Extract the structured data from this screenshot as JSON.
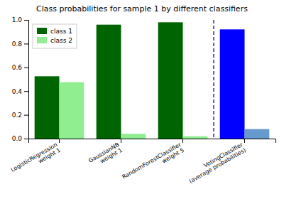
{
  "chart_data": {
    "type": "bar",
    "title": "Class probabilities for sample 1 by different classifiers",
    "categories": [
      "LogisticRegression\nweight 1",
      "GaussianNB\nweight 1",
      "RandomForestClassifier\nweight 5",
      "VotingClassifier\n(average probabilities)"
    ],
    "series": [
      {
        "name": "class 1",
        "color": "#006400",
        "colors": [
          "#006400",
          "#006400",
          "#006400",
          "#0000FF"
        ],
        "values": [
          0.525,
          0.96,
          0.98,
          0.92
        ]
      },
      {
        "name": "class 2",
        "color": "#90EE90",
        "colors": [
          "#90EE90",
          "#90EE90",
          "#90EE90",
          "#6699CC"
        ],
        "values": [
          0.475,
          0.04,
          0.02,
          0.08
        ]
      }
    ],
    "ylim": [
      0.0,
      1.0
    ],
    "yticks": [
      {
        "value": 0,
        "label": "0.0"
      },
      0.2,
      0.4,
      0.6,
      0.8,
      {
        "value": 1,
        "label": "1.0"
      }
    ],
    "legend": "upper left"
  }
}
